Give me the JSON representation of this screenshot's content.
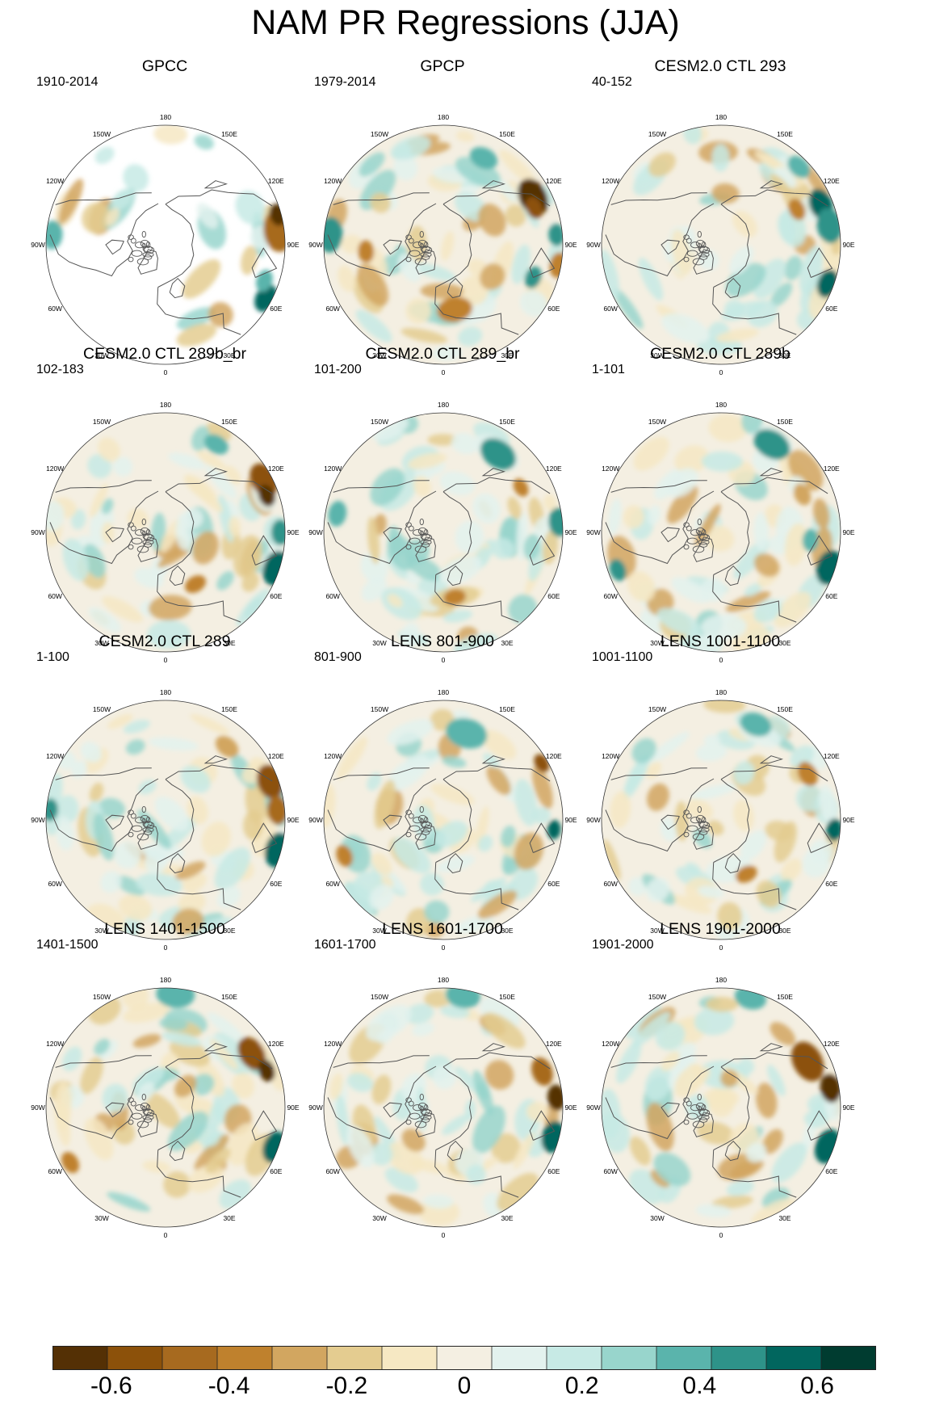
{
  "figure_title": "NAM PR Regressions (JJA)",
  "chart_data": {
    "type": "heatmap",
    "projection": "north polar stereographic",
    "variable": "PR",
    "season": "JJA",
    "longitude_labels": [
      "180",
      "150E",
      "120E",
      "90E",
      "60E",
      "30E",
      "0",
      "30W",
      "60W",
      "90W",
      "120W",
      "150W"
    ],
    "panels": [
      {
        "title": "GPCC",
        "years": "1910-2014"
      },
      {
        "title": "GPCP",
        "years": "1979-2014"
      },
      {
        "title": "CESM2.0 CTL 293",
        "years": "40-152"
      },
      {
        "title": "CESM2.0 CTL 289b_br",
        "years": "102-183"
      },
      {
        "title": "CESM2.0 CTL 289_br",
        "years": "101-200"
      },
      {
        "title": "CESM2.0 CTL 289b",
        "years": "1-101"
      },
      {
        "title": "CESM2.0 CTL 289",
        "years": "1-100"
      },
      {
        "title": "LENS 801-900",
        "years": "801-900"
      },
      {
        "title": "LENS 1001-1100",
        "years": "1001-1100"
      },
      {
        "title": "LENS 1401-1500",
        "years": "1401-1500"
      },
      {
        "title": "LENS 1601-1700",
        "years": "1601-1700"
      },
      {
        "title": "LENS 1901-2000",
        "years": "1901-2000"
      }
    ],
    "colorbar": {
      "levels": [
        -0.7,
        -0.6,
        -0.5,
        -0.4,
        -0.3,
        -0.2,
        -0.1,
        0,
        0.1,
        0.2,
        0.3,
        0.4,
        0.5,
        0.6,
        0.7
      ],
      "tick_labels": [
        "-0.6",
        "-0.4",
        "-0.2",
        "0",
        "0.2",
        "0.4",
        "0.6"
      ],
      "colors": [
        "#543005",
        "#8c510a",
        "#a76a1f",
        "#bf812d",
        "#d2a660",
        "#e4cc90",
        "#f6e8c3",
        "#f4efe2",
        "#e3f2ee",
        "#c7eae5",
        "#98d5cc",
        "#5ab4ac",
        "#2e9389",
        "#01665e",
        "#003c30"
      ]
    }
  }
}
